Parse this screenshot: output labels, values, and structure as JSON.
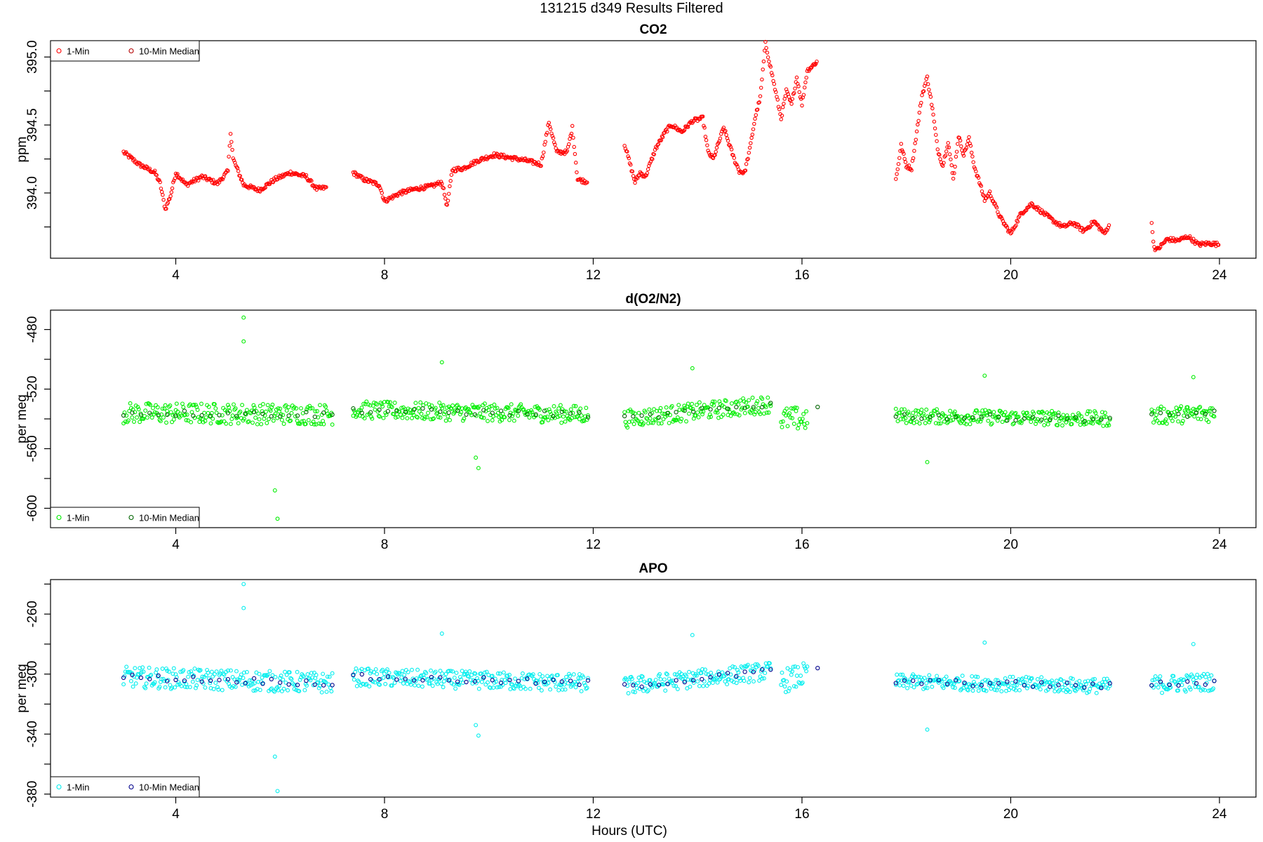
{
  "title": "131215   d349   Results Filtered",
  "x_axis_title": "Hours (UTC)",
  "chart_data": [
    {
      "type": "scatter",
      "title": "CO2",
      "xlabel": "",
      "ylabel": "ppm",
      "xlim": [
        1.6,
        24.7
      ],
      "ylim": [
        393.52,
        395.12
      ],
      "x_ticks": [
        4,
        8,
        12,
        16,
        20,
        24
      ],
      "y_ticks": [
        394.0,
        394.5,
        395.0
      ],
      "y_tick_labels": [
        "394.0",
        "394.5",
        "395.0"
      ],
      "legend": {
        "position": "top-left",
        "entries": [
          "1-Min",
          "10-Min Median"
        ]
      },
      "colors": {
        "one_min": "#ff0000",
        "median": "#b30000"
      },
      "series": [
        {
          "name": "1-Min",
          "segments": [
            {
              "x": [
                3.0,
                3.3,
                3.6,
                3.7,
                3.8,
                3.9,
                4.0,
                4.2,
                4.5,
                4.8,
                5.0,
                5.05,
                5.1,
                5.3,
                5.6,
                5.9,
                6.2,
                6.5,
                6.7,
                6.9
              ],
              "y": [
                394.3,
                394.21,
                394.15,
                394.07,
                393.88,
                393.98,
                394.15,
                394.06,
                394.12,
                394.07,
                394.16,
                394.45,
                394.25,
                394.06,
                394.02,
                394.1,
                394.15,
                394.12,
                394.03,
                394.04
              ]
            },
            {
              "x": [
                7.4,
                7.6,
                7.9,
                8.0,
                8.3,
                8.6,
                8.9,
                9.1,
                9.2,
                9.3,
                9.5,
                9.8,
                10.1,
                10.4,
                10.7,
                11.0,
                11.15,
                11.3,
                11.5,
                11.6,
                11.7,
                11.9
              ],
              "y": [
                394.15,
                394.1,
                394.06,
                393.94,
                394.0,
                394.03,
                394.05,
                394.08,
                393.9,
                394.17,
                394.18,
                394.24,
                394.28,
                394.26,
                394.24,
                394.21,
                394.52,
                394.3,
                394.3,
                394.48,
                394.1,
                394.08
              ]
            },
            {
              "x": [
                12.6,
                12.7,
                12.8,
                12.9,
                13.0,
                13.2,
                13.4,
                13.5,
                13.7,
                13.9,
                14.1,
                14.2,
                14.3,
                14.5,
                14.7,
                14.8,
                14.9,
                15.0,
                15.1,
                15.2,
                15.3,
                15.4,
                15.6,
                15.7,
                15.8,
                15.9,
                16.0,
                16.1,
                16.3
              ],
              "y": [
                394.36,
                394.22,
                394.08,
                394.15,
                394.12,
                394.33,
                394.46,
                394.5,
                394.45,
                394.53,
                394.55,
                394.3,
                394.25,
                394.48,
                394.25,
                394.16,
                394.15,
                394.32,
                394.55,
                394.7,
                395.1,
                394.92,
                394.55,
                394.75,
                394.65,
                394.85,
                394.65,
                394.9,
                394.97
              ]
            },
            {
              "x": [
                17.8,
                17.85,
                17.9,
                18.0,
                18.1,
                18.2,
                18.3,
                18.4,
                18.5,
                18.6,
                18.7,
                18.8,
                18.9,
                19.0,
                19.1,
                19.2,
                19.3,
                19.4,
                19.5,
                19.6,
                19.8,
                20.0,
                20.2,
                20.4,
                20.6,
                20.8,
                21.0,
                21.2,
                21.4,
                21.6,
                21.8,
                21.9
              ],
              "y": [
                394.1,
                394.22,
                394.35,
                394.2,
                394.18,
                394.45,
                394.72,
                394.85,
                394.62,
                394.32,
                394.2,
                394.38,
                394.1,
                394.42,
                394.28,
                394.4,
                394.2,
                394.08,
                393.95,
                394.0,
                393.82,
                393.7,
                393.85,
                393.92,
                393.86,
                393.8,
                393.75,
                393.78,
                393.72,
                393.79,
                393.7,
                393.78
              ]
            },
            {
              "x": [
                22.7,
                22.75,
                22.8,
                23.0,
                23.2,
                23.4,
                23.6,
                23.8,
                24.0
              ],
              "y": [
                393.77,
                393.6,
                393.58,
                393.66,
                393.65,
                393.68,
                393.62,
                393.63,
                393.62
              ]
            }
          ]
        },
        {
          "name": "10-Min Median",
          "segments": []
        }
      ]
    },
    {
      "type": "scatter",
      "title": "d(O2/N2)",
      "xlabel": "",
      "ylabel": "per meg",
      "xlim": [
        1.6,
        24.7
      ],
      "ylim": [
        -613,
        -467
      ],
      "x_ticks": [
        4,
        8,
        12,
        16,
        20,
        24
      ],
      "y_ticks": [
        -480,
        -520,
        -560,
        -600
      ],
      "y_tick_labels": [
        "-480",
        "-520",
        "-560",
        "-600"
      ],
      "legend": {
        "position": "bottom-left",
        "entries": [
          "1-Min",
          "10-Min Median"
        ]
      },
      "colors": {
        "one_min": "#00ee00",
        "median": "#006400"
      },
      "series": [
        {
          "name": "1-Min",
          "segments": [
            {
              "x": [
                3.0,
                7.0
              ],
              "y": [
                -536,
                -537
              ],
              "spread": 7
            },
            {
              "x": [
                7.4,
                11.9
              ],
              "y": [
                -534,
                -537
              ],
              "spread": 6
            },
            {
              "x": [
                12.6,
                15.4
              ],
              "y": [
                -540,
                -530
              ],
              "spread": 6
            },
            {
              "x": [
                15.6,
                16.1
              ],
              "y": [
                -540,
                -540
              ],
              "spread": 8
            },
            {
              "x": [
                17.8,
                21.9
              ],
              "y": [
                -538,
                -540
              ],
              "spread": 5
            },
            {
              "x": [
                22.7,
                23.9
              ],
              "y": [
                -538,
                -536
              ],
              "spread": 6
            }
          ],
          "outliers": {
            "x": [
              5.3,
              5.3,
              5.9,
              5.95,
              9.1,
              9.75,
              9.8,
              13.9,
              18.4,
              19.5,
              23.5
            ],
            "y": [
              -472,
              -488,
              -588,
              -607,
              -502,
              -566,
              -573,
              -506,
              -569,
              -511,
              -512
            ]
          }
        },
        {
          "name": "10-Min Median",
          "segments": [
            {
              "x": [
                3.0,
                7.0
              ],
              "y": [
                -536,
                -537
              ]
            },
            {
              "x": [
                7.4,
                11.9
              ],
              "y": [
                -534,
                -537
              ]
            },
            {
              "x": [
                12.6,
                15.4
              ],
              "y": [
                -540,
                -530
              ]
            },
            {
              "x": [
                16.3
              ],
              "y": [
                -532
              ]
            },
            {
              "x": [
                17.8,
                21.9
              ],
              "y": [
                -538,
                -540
              ]
            },
            {
              "x": [
                22.7,
                23.9
              ],
              "y": [
                -538,
                -536
              ]
            }
          ]
        }
      ]
    },
    {
      "type": "scatter",
      "title": "APO",
      "xlabel": "Hours (UTC)",
      "ylabel": "per meg",
      "xlim": [
        1.6,
        24.7
      ],
      "ylim": [
        -382,
        -237
      ],
      "x_ticks": [
        4,
        8,
        12,
        16,
        20,
        24
      ],
      "y_ticks": [
        -260,
        -300,
        -340,
        -380
      ],
      "y_tick_labels": [
        "-260",
        "-300",
        "-340",
        "-380"
      ],
      "legend": {
        "position": "bottom-left",
        "entries": [
          "1-Min",
          "10-Min Median"
        ]
      },
      "colors": {
        "one_min": "#00eeee",
        "median": "#00008b"
      },
      "series": [
        {
          "name": "1-Min",
          "segments": [
            {
              "x": [
                3.0,
                7.0
              ],
              "y": [
                -302,
                -306
              ],
              "spread": 7
            },
            {
              "x": [
                7.4,
                11.9
              ],
              "y": [
                -302,
                -306
              ],
              "spread": 6
            },
            {
              "x": [
                12.6,
                15.4
              ],
              "y": [
                -308,
                -298
              ],
              "spread": 6
            },
            {
              "x": [
                15.6,
                16.1
              ],
              "y": [
                -305,
                -300
              ],
              "spread": 8
            },
            {
              "x": [
                17.8,
                21.9
              ],
              "y": [
                -305,
                -308
              ],
              "spread": 5
            },
            {
              "x": [
                22.7,
                23.9
              ],
              "y": [
                -307,
                -305
              ],
              "spread": 6
            }
          ],
          "outliers": {
            "x": [
              5.3,
              5.3,
              5.9,
              5.95,
              9.1,
              9.75,
              9.8,
              13.9,
              18.4,
              19.5,
              23.5
            ],
            "y": [
              -240,
              -256,
              -355,
              -378,
              -273,
              -334,
              -341,
              -274,
              -337,
              -279,
              -280
            ]
          }
        },
        {
          "name": "10-Min Median",
          "segments": [
            {
              "x": [
                3.0,
                7.0
              ],
              "y": [
                -302,
                -306
              ]
            },
            {
              "x": [
                7.4,
                11.9
              ],
              "y": [
                -302,
                -306
              ]
            },
            {
              "x": [
                12.6,
                15.4
              ],
              "y": [
                -308,
                -298
              ]
            },
            {
              "x": [
                16.3
              ],
              "y": [
                -296
              ]
            },
            {
              "x": [
                17.8,
                21.9
              ],
              "y": [
                -305,
                -308
              ]
            },
            {
              "x": [
                22.7,
                23.9
              ],
              "y": [
                -307,
                -305
              ]
            }
          ]
        }
      ]
    }
  ]
}
